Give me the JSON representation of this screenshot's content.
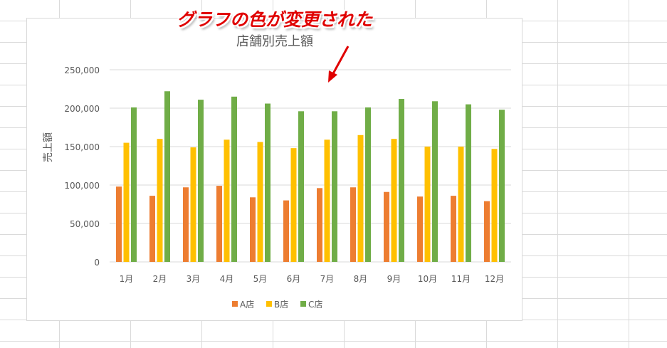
{
  "annotation": {
    "text": "グラフの色が変更された",
    "color": "#e00000"
  },
  "chart_data": {
    "type": "bar",
    "title": "店舗別売上額",
    "xlabel": "",
    "ylabel": "売上額",
    "ylim": [
      0,
      250000
    ],
    "yticks": [
      0,
      50000,
      100000,
      150000,
      200000,
      250000
    ],
    "ytick_labels": [
      "0",
      "50,000",
      "100,000",
      "150,000",
      "200,000",
      "250,000"
    ],
    "grid": true,
    "legend": "bottom",
    "categories": [
      "1月",
      "2月",
      "3月",
      "4月",
      "5月",
      "6月",
      "7月",
      "8月",
      "9月",
      "10月",
      "11月",
      "12月"
    ],
    "series": [
      {
        "name": "A店",
        "color": "#ed7d31",
        "values": [
          98000,
          86000,
          97000,
          99000,
          84000,
          80000,
          96000,
          97000,
          91000,
          85000,
          86000,
          79000
        ]
      },
      {
        "name": "B店",
        "color": "#ffc000",
        "values": [
          155000,
          160000,
          149000,
          159000,
          156000,
          148000,
          159000,
          165000,
          160000,
          150000,
          150000,
          147000
        ]
      },
      {
        "name": "C店",
        "color": "#70ad47",
        "values": [
          201000,
          222000,
          211000,
          215000,
          206000,
          196000,
          196000,
          201000,
          212000,
          209000,
          205000,
          198000
        ]
      }
    ]
  }
}
